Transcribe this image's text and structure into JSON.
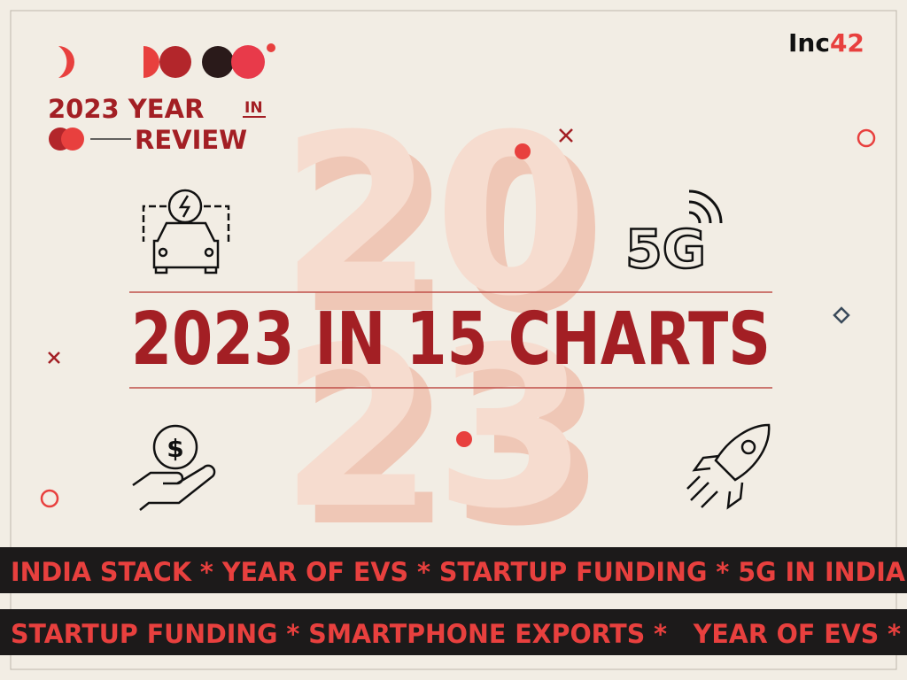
{
  "logo": {
    "prefix": "Inc",
    "suffix": "42"
  },
  "badge": {
    "line1": "2023 YEAR",
    "small": "IN",
    "line2": "REVIEW"
  },
  "background_text": {
    "top": "20",
    "bottom": "23"
  },
  "title": "2023 IN 15 CHARTS",
  "icons": {
    "network": "5G",
    "currency": "$"
  },
  "banners": [
    "INDIA STACK * YEAR OF EVS * STARTUP FUNDING * 5G IN INDIA",
    "STARTUP FUNDING * SMARTPHONE EXPORTS *   YEAR OF EVS *"
  ]
}
